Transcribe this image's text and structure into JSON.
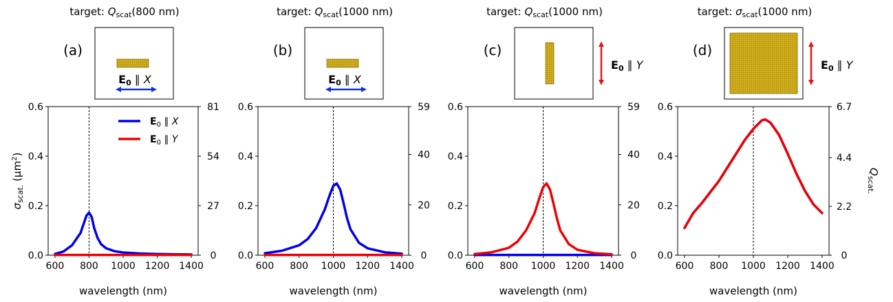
{
  "figure": {
    "ylabel_left": "σscat. (μm²)",
    "ylabel_left_parts": {
      "symbol": "σ",
      "sub": "scat.",
      "rest": " (μm",
      "sup": "2",
      "close": ")"
    },
    "ylabel_right": "Qscat.",
    "ylabel_right_parts": {
      "symbol": "Q",
      "sub": "scat."
    },
    "xlabel": "wavelength (nm)"
  },
  "colors": {
    "series_x": "#0000ee",
    "series_y": "#ee0000",
    "gold": "#d4b020",
    "gold_grid": "#8a7412",
    "arrow_x": "#1030e0",
    "arrow_y": "#e01818"
  },
  "legend": [
    {
      "bold": "E",
      "sub": "0",
      "rest": " ∥ ",
      "italic": "X",
      "color": "#0000ee"
    },
    {
      "bold": "E",
      "sub": "0",
      "rest": " ∥ ",
      "italic": "Y",
      "color": "#ee0000"
    }
  ],
  "panels": [
    {
      "letter": "(a)",
      "title_prefix": "target: ",
      "title_symbol": "Q",
      "title_sub": "scat",
      "title_arg": "(800 nm)",
      "polarization_label": {
        "bold": "E",
        "sub": "0",
        "rest": " ∥ ",
        "italic": "X"
      },
      "shape": "horizontal-rod",
      "arrow": "horizontal"
    },
    {
      "letter": "(b)",
      "title_prefix": "target: ",
      "title_symbol": "Q",
      "title_sub": "scat",
      "title_arg": "(1000 nm)",
      "polarization_label": {
        "bold": "E",
        "sub": "0",
        "rest": " ∥ ",
        "italic": "X"
      },
      "shape": "horizontal-rod",
      "arrow": "horizontal"
    },
    {
      "letter": "(c)",
      "title_prefix": "target: ",
      "title_symbol": "Q",
      "title_sub": "scat",
      "title_arg": "(1000 nm)",
      "polarization_label": {
        "bold": "E",
        "sub": "0",
        "rest": " ∥ ",
        "italic": "Y"
      },
      "shape": "vertical-rod",
      "arrow": "vertical"
    },
    {
      "letter": "(d)",
      "title_prefix": "target: ",
      "title_symbol": "σ",
      "title_sub": "scat",
      "title_arg": "(1000 nm)",
      "polarization_label": {
        "bold": "E",
        "sub": "0",
        "rest": " ∥ ",
        "italic": "Y"
      },
      "shape": "square",
      "arrow": "vertical"
    }
  ],
  "chart_data": [
    {
      "type": "line",
      "xlim": [
        560,
        1440
      ],
      "ylim": [
        0,
        0.6
      ],
      "y2lim": [
        0,
        81
      ],
      "xticks": [
        600,
        800,
        1000,
        1200,
        1400
      ],
      "yticks": [
        0.0,
        0.2,
        0.4,
        0.6
      ],
      "y2ticks": [
        0,
        27,
        54,
        81
      ],
      "target_line_x": 800,
      "legend": true,
      "series": [
        {
          "name": "E0 ∥ X",
          "color": "#0000ee",
          "x": [
            600,
            650,
            700,
            730,
            750,
            770,
            785,
            800,
            815,
            830,
            850,
            870,
            900,
            950,
            1000,
            1100,
            1200,
            1300,
            1400
          ],
          "y": [
            0.005,
            0.015,
            0.04,
            0.07,
            0.09,
            0.13,
            0.16,
            0.172,
            0.155,
            0.11,
            0.07,
            0.045,
            0.028,
            0.016,
            0.011,
            0.007,
            0.005,
            0.004,
            0.003
          ]
        },
        {
          "name": "E0 ∥ Y",
          "color": "#ee0000",
          "x": [
            600,
            800,
            1000,
            1200,
            1400
          ],
          "y": [
            0.001,
            0.001,
            0.001,
            0.001,
            0.001
          ]
        }
      ]
    },
    {
      "type": "line",
      "xlim": [
        560,
        1440
      ],
      "ylim": [
        0,
        0.6
      ],
      "y2lim": [
        0,
        59
      ],
      "xticks": [
        600,
        800,
        1000,
        1200,
        1400
      ],
      "yticks": [
        0.0,
        0.2,
        0.4,
        0.6
      ],
      "y2ticks": [
        0,
        20,
        40,
        59
      ],
      "target_line_x": 1000,
      "legend": false,
      "series": [
        {
          "name": "E0 ∥ X",
          "color": "#0000ee",
          "x": [
            600,
            700,
            800,
            850,
            900,
            950,
            980,
            1000,
            1020,
            1040,
            1060,
            1080,
            1100,
            1150,
            1200,
            1300,
            1400
          ],
          "y": [
            0.008,
            0.018,
            0.04,
            0.065,
            0.11,
            0.185,
            0.245,
            0.28,
            0.29,
            0.265,
            0.21,
            0.15,
            0.105,
            0.05,
            0.028,
            0.012,
            0.006
          ]
        },
        {
          "name": "E0 ∥ Y",
          "color": "#ee0000",
          "x": [
            600,
            800,
            1000,
            1200,
            1400
          ],
          "y": [
            0.001,
            0.001,
            0.001,
            0.001,
            0.001
          ]
        }
      ]
    },
    {
      "type": "line",
      "xlim": [
        560,
        1440
      ],
      "ylim": [
        0,
        0.6
      ],
      "y2lim": [
        0,
        59
      ],
      "xticks": [
        600,
        800,
        1000,
        1200,
        1400
      ],
      "yticks": [
        0.0,
        0.2,
        0.4,
        0.6
      ],
      "y2ticks": [
        0,
        20,
        40,
        59
      ],
      "target_line_x": 1000,
      "legend": false,
      "series": [
        {
          "name": "E0 ∥ X",
          "color": "#0000ee",
          "x": [
            600,
            800,
            1000,
            1200,
            1400
          ],
          "y": [
            0.001,
            0.001,
            0.001,
            0.001,
            0.001
          ]
        },
        {
          "name": "E0 ∥ Y",
          "color": "#ee0000",
          "x": [
            600,
            700,
            800,
            850,
            900,
            950,
            980,
            1000,
            1020,
            1040,
            1060,
            1080,
            1100,
            1150,
            1200,
            1300,
            1400
          ],
          "y": [
            0.005,
            0.012,
            0.03,
            0.055,
            0.1,
            0.17,
            0.235,
            0.275,
            0.29,
            0.265,
            0.21,
            0.15,
            0.1,
            0.045,
            0.022,
            0.008,
            0.004
          ]
        }
      ]
    },
    {
      "type": "line",
      "xlim": [
        560,
        1440
      ],
      "ylim": [
        0,
        0.6
      ],
      "y2lim": [
        0,
        6.7
      ],
      "xticks": [
        600,
        800,
        1000,
        1200,
        1400
      ],
      "yticks": [
        0.0,
        0.2,
        0.4,
        0.6
      ],
      "y2ticks": [
        0,
        2.2,
        4.4,
        6.7
      ],
      "target_line_x": 1000,
      "legend": false,
      "series": [
        {
          "name": "E0 ∥ X",
          "color": "#0000ee",
          "x": [
            600,
            650,
            700,
            750,
            800,
            850,
            900,
            950,
            1000,
            1050,
            1070,
            1100,
            1150,
            1200,
            1250,
            1300,
            1350,
            1400
          ],
          "y": [
            0.11,
            0.17,
            0.21,
            0.255,
            0.3,
            0.355,
            0.41,
            0.465,
            0.51,
            0.545,
            0.548,
            0.535,
            0.485,
            0.41,
            0.33,
            0.26,
            0.205,
            0.17
          ]
        },
        {
          "name": "E0 ∥ Y",
          "color": "#ee0000",
          "x": [
            600,
            650,
            700,
            750,
            800,
            850,
            900,
            950,
            1000,
            1050,
            1070,
            1100,
            1150,
            1200,
            1250,
            1300,
            1350,
            1400
          ],
          "y": [
            0.11,
            0.17,
            0.21,
            0.255,
            0.3,
            0.355,
            0.41,
            0.465,
            0.51,
            0.545,
            0.548,
            0.535,
            0.485,
            0.41,
            0.33,
            0.26,
            0.205,
            0.17
          ]
        }
      ]
    }
  ]
}
